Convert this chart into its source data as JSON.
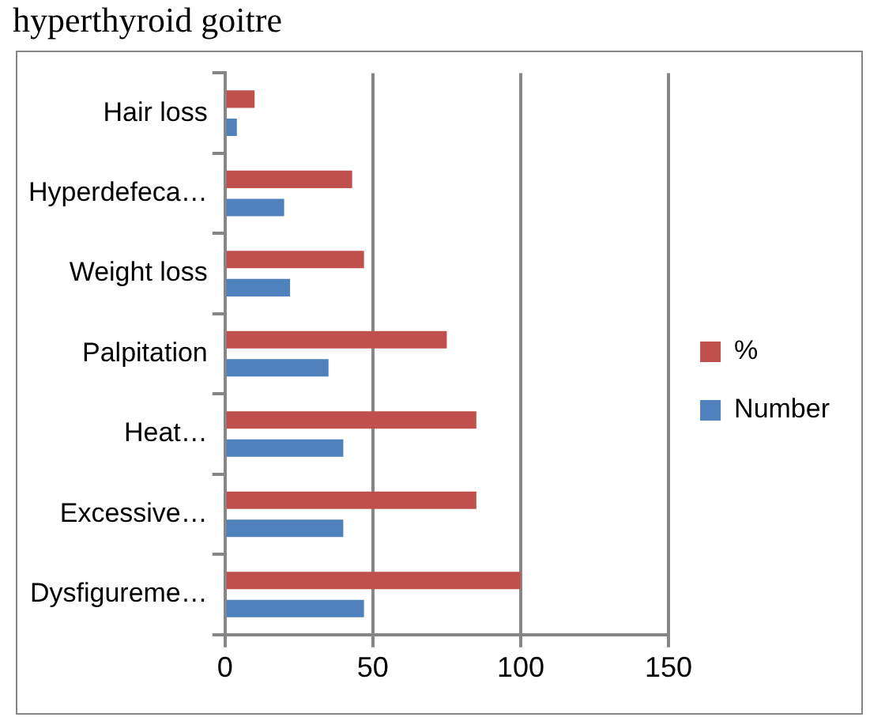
{
  "chart_data": {
    "type": "bar",
    "orientation": "horizontal",
    "title": "hyperthyroid goitre",
    "categories": [
      "Hair loss",
      "Hyperdefeca…",
      "Weight loss",
      "Palpitation",
      "Heat…",
      "Excessive…",
      "Dysfigureme…"
    ],
    "series": [
      {
        "name": "%",
        "color": "#c0504d",
        "values": [
          10,
          43,
          47,
          75,
          85,
          85,
          100
        ]
      },
      {
        "name": "Number",
        "color": "#4f81bd",
        "values": [
          4,
          20,
          22,
          35,
          40,
          40,
          47
        ]
      }
    ],
    "xlim": [
      0,
      150
    ],
    "xticks": [
      0,
      50,
      100,
      150
    ],
    "grid": "x",
    "legend": "right"
  }
}
